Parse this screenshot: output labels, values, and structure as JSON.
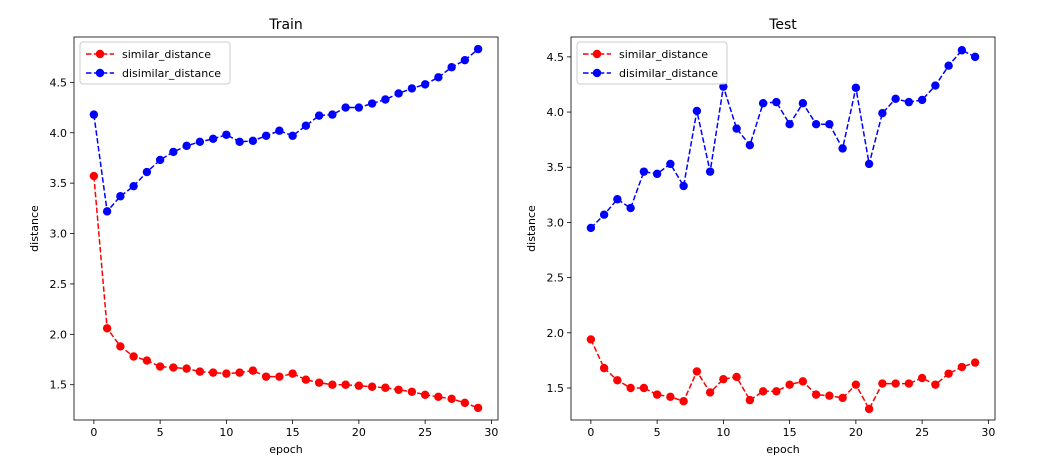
{
  "chart_data": [
    {
      "type": "line",
      "title": "Train",
      "xlabel": "epoch",
      "ylabel": "distance",
      "xlim": [
        -1.5,
        30.5
      ],
      "ylim": [
        1.15,
        4.95
      ],
      "xticks": [
        0,
        5,
        10,
        15,
        20,
        25,
        30
      ],
      "yticks": [
        1.5,
        2.0,
        2.5,
        3.0,
        3.5,
        4.0,
        4.5
      ],
      "grid": false,
      "legend_position": "upper-left",
      "x": [
        0,
        1,
        2,
        3,
        4,
        5,
        6,
        7,
        8,
        9,
        10,
        11,
        12,
        13,
        14,
        15,
        16,
        17,
        18,
        19,
        20,
        21,
        22,
        23,
        24,
        25,
        26,
        27,
        28,
        29
      ],
      "series": [
        {
          "name": "similar_distance",
          "color": "#ff0000",
          "marker": "circle",
          "linestyle": "dashed",
          "values": [
            3.57,
            2.06,
            1.88,
            1.78,
            1.74,
            1.68,
            1.67,
            1.66,
            1.63,
            1.62,
            1.61,
            1.62,
            1.64,
            1.58,
            1.58,
            1.61,
            1.55,
            1.52,
            1.5,
            1.5,
            1.49,
            1.48,
            1.47,
            1.45,
            1.43,
            1.4,
            1.38,
            1.36,
            1.32,
            1.27
          ]
        },
        {
          "name": "disimilar_distance",
          "color": "#0000ff",
          "marker": "circle",
          "linestyle": "dashed",
          "values": [
            4.18,
            3.22,
            3.37,
            3.47,
            3.61,
            3.73,
            3.81,
            3.87,
            3.91,
            3.94,
            3.98,
            3.91,
            3.92,
            3.97,
            4.02,
            3.97,
            4.07,
            4.17,
            4.18,
            4.25,
            4.25,
            4.29,
            4.33,
            4.39,
            4.44,
            4.48,
            4.55,
            4.65,
            4.72,
            4.83
          ]
        }
      ]
    },
    {
      "type": "line",
      "title": "Test",
      "xlabel": "epoch",
      "ylabel": "distance",
      "xlim": [
        -1.5,
        30.5
      ],
      "ylim": [
        1.21,
        4.68
      ],
      "xticks": [
        0,
        5,
        10,
        15,
        20,
        25,
        30
      ],
      "yticks": [
        1.5,
        2.0,
        2.5,
        3.0,
        3.5,
        4.0,
        4.5
      ],
      "grid": false,
      "legend_position": "upper-left",
      "x": [
        0,
        1,
        2,
        3,
        4,
        5,
        6,
        7,
        8,
        9,
        10,
        11,
        12,
        13,
        14,
        15,
        16,
        17,
        18,
        19,
        20,
        21,
        22,
        23,
        24,
        25,
        26,
        27,
        28,
        29
      ],
      "series": [
        {
          "name": "similar_distance",
          "color": "#ff0000",
          "marker": "circle",
          "linestyle": "dashed",
          "values": [
            1.94,
            1.68,
            1.57,
            1.5,
            1.5,
            1.44,
            1.42,
            1.38,
            1.65,
            1.46,
            1.58,
            1.6,
            1.39,
            1.47,
            1.47,
            1.53,
            1.56,
            1.44,
            1.43,
            1.41,
            1.53,
            1.31,
            1.54,
            1.54,
            1.54,
            1.59,
            1.53,
            1.63,
            1.69,
            1.73
          ]
        },
        {
          "name": "disimilar_distance",
          "color": "#0000ff",
          "marker": "circle",
          "linestyle": "dashed",
          "values": [
            2.95,
            3.07,
            3.21,
            3.13,
            3.46,
            3.44,
            3.53,
            3.33,
            4.01,
            3.46,
            4.23,
            3.85,
            3.7,
            4.08,
            4.09,
            3.89,
            4.08,
            3.89,
            3.89,
            3.67,
            4.22,
            3.53,
            3.99,
            4.12,
            4.09,
            4.11,
            4.24,
            4.42,
            4.56,
            4.5
          ]
        }
      ]
    }
  ]
}
